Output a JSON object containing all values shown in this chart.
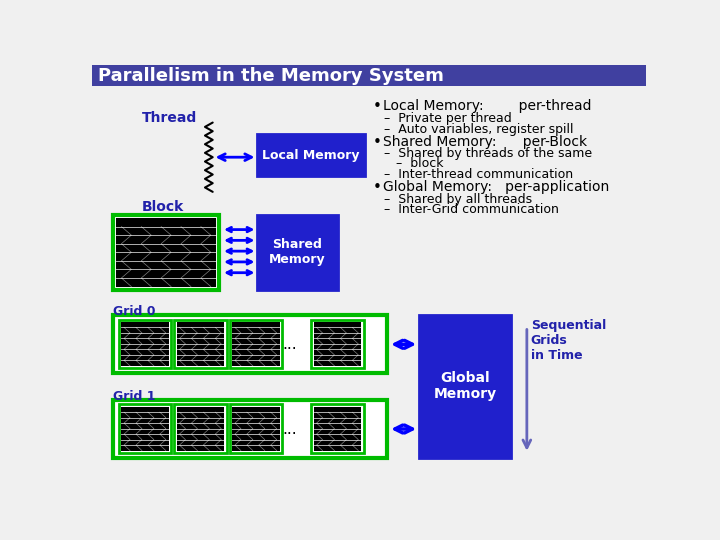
{
  "title": "Parallelism in the Memory System",
  "title_bg": "#4040a0",
  "title_color": "#ffffff",
  "bg_color": "#f0f0f0",
  "thread_label": "Thread",
  "local_memory_label": "Local Memory",
  "block_label": "Block",
  "shared_memory_label": "Shared\nMemory",
  "grid0_label": "Grid 0",
  "grid1_label": "Grid 1",
  "global_memory_label": "Global\nMemory",
  "seq_grids_label": "Sequential\nGrids\nin Time",
  "blue_box": "#2020cc",
  "green_border": "#00bb00",
  "dark_blue_text": "#2222aa",
  "bullet1": "Local Memory:        per-thread",
  "sub1_1": "Private per thread",
  "sub1_2": "Auto variables, register spill",
  "bullet2": "Shared Memory:      per-Block",
  "sub2_1a": "Shared by threads of the same",
  "sub2_1b": "block",
  "sub2_2": "Inter-thread communication",
  "bullet3": "Global Memory:   per-application",
  "sub3_1": "Shared by all threads",
  "sub3_2": "Inter-Grid communication"
}
